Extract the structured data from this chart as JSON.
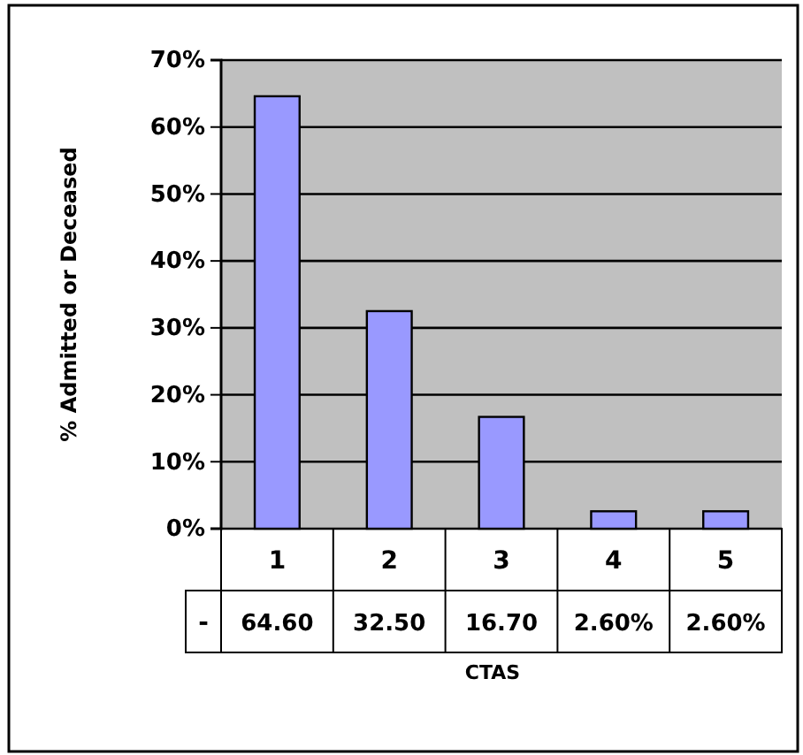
{
  "chart_data": {
    "type": "bar",
    "xlabel": "CTAS",
    "ylabel": "% Admitted or Deceased",
    "categories": [
      "1",
      "2",
      "3",
      "4",
      "5"
    ],
    "series": [
      {
        "name": "-",
        "color": "#9999ff",
        "values": [
          64.6,
          32.5,
          16.7,
          2.6,
          2.6
        ],
        "value_labels": [
          "64.60",
          "32.50",
          "16.70",
          "2.60%",
          "2.60%"
        ]
      }
    ],
    "ylim": [
      0,
      70
    ],
    "yticks": [
      {
        "value": 0,
        "label": "0%"
      },
      {
        "value": 10,
        "label": "10%"
      },
      {
        "value": 20,
        "label": "20%"
      },
      {
        "value": 30,
        "label": "30%"
      },
      {
        "value": 40,
        "label": "40%"
      },
      {
        "value": 50,
        "label": "50%"
      },
      {
        "value": 60,
        "label": "60%"
      },
      {
        "value": 70,
        "label": "70%"
      }
    ],
    "grid": "y"
  }
}
